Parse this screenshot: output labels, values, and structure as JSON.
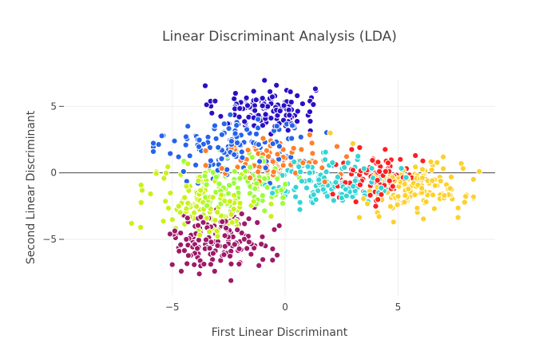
{
  "chart_data": {
    "type": "scatter",
    "title": "Linear Discriminant Analysis (LDA)",
    "xlabel": "First Linear Discriminant",
    "ylabel": "Second Linear Discriminant",
    "xlim": [
      -9.8,
      9.3
    ],
    "ylim": [
      -9.2,
      7.0
    ],
    "xticks": [
      -5,
      0,
      5
    ],
    "xtick_labels": [
      "−5",
      "0",
      "5"
    ],
    "yticks": [
      -5,
      0,
      5
    ],
    "ytick_labels": [
      "−5",
      "0",
      "5"
    ],
    "grid": true,
    "legend": false,
    "series": [
      {
        "color": "#2a0fc4",
        "cluster": {
          "cx": -0.9,
          "cy": 4.8,
          "sx": 1.1,
          "sy": 0.9,
          "n": 120
        }
      },
      {
        "color": "#2563ea",
        "cluster": {
          "cx": -2.0,
          "cy": 2.1,
          "sx": 1.6,
          "sy": 1.2,
          "n": 130
        }
      },
      {
        "color": "#ff7f2a",
        "cluster": {
          "cx": -0.4,
          "cy": 0.9,
          "sx": 1.3,
          "sy": 1.0,
          "n": 90
        }
      },
      {
        "color": "#99ff33",
        "cluster": {
          "cx": -1.6,
          "cy": -0.7,
          "sx": 1.2,
          "sy": 1.0,
          "n": 90
        }
      },
      {
        "color": "#c8f219",
        "cluster": {
          "cx": -3.5,
          "cy": -2.2,
          "sx": 1.2,
          "sy": 1.2,
          "n": 130
        }
      },
      {
        "color": "#9d1a68",
        "cluster": {
          "cx": -2.9,
          "cy": -5.0,
          "sx": 1.1,
          "sy": 1.0,
          "n": 150
        }
      },
      {
        "color": "#34d4d6",
        "cluster": {
          "cx": 2.0,
          "cy": -0.6,
          "sx": 1.4,
          "sy": 0.9,
          "n": 140
        }
      },
      {
        "color": "#ff1f1f",
        "cluster": {
          "cx": 4.1,
          "cy": -0.4,
          "sx": 0.9,
          "sy": 0.9,
          "n": 90
        }
      },
      {
        "color": "#fdd12b",
        "cluster": {
          "cx": 5.7,
          "cy": -1.3,
          "sx": 1.1,
          "sy": 0.9,
          "n": 130
        }
      }
    ],
    "outliers": [
      {
        "x": -6.8,
        "y": -3.8,
        "color": "#c8f219"
      },
      {
        "x": -6.4,
        "y": -4.1,
        "color": "#c8f219"
      },
      {
        "x": -5.4,
        "y": 2.8,
        "color": "#2563ea"
      },
      {
        "x": -5.1,
        "y": -4.6,
        "color": "#9d1a68"
      },
      {
        "x": -5.0,
        "y": -6.9,
        "color": "#9d1a68"
      },
      {
        "x": -4.9,
        "y": 2.4,
        "color": "#2563ea"
      },
      {
        "x": -4.5,
        "y": 0.1,
        "color": "#2563ea"
      },
      {
        "x": -3.8,
        "y": -7.6,
        "color": "#9d1a68"
      },
      {
        "x": -3.1,
        "y": 5.4,
        "color": "#2a0fc4"
      },
      {
        "x": 1.1,
        "y": 5.4,
        "color": "#2a0fc4"
      },
      {
        "x": 2.0,
        "y": 3.0,
        "color": "#fdd12b"
      },
      {
        "x": 3.0,
        "y": 2.2,
        "color": "#fdd12b"
      },
      {
        "x": 4.8,
        "y": -3.7,
        "color": "#fdd12b"
      },
      {
        "x": 7.0,
        "y": 1.2,
        "color": "#fdd12b"
      },
      {
        "x": 7.8,
        "y": 0.7,
        "color": "#fdd12b"
      },
      {
        "x": 8.6,
        "y": 0.1,
        "color": "#fdd12b"
      },
      {
        "x": 6.1,
        "y": 0.9,
        "color": "#ff1f1f"
      },
      {
        "x": 3.3,
        "y": 1.9,
        "color": "#ff1f1f"
      },
      {
        "x": -2.4,
        "y": -8.1,
        "color": "#9d1a68"
      }
    ]
  }
}
